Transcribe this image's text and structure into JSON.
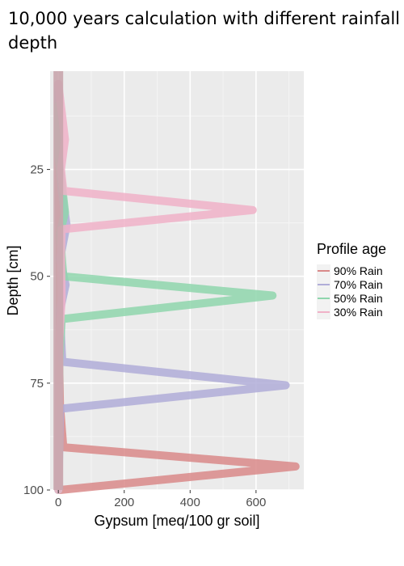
{
  "chart_data": {
    "type": "line",
    "title": "10,000 years calculation with different rainfall depth",
    "xlabel": "Gypsum [meq/100 gr soil]",
    "ylabel": "Depth [cm]",
    "xlim": [
      -25,
      745
    ],
    "ylim": [
      100,
      2
    ],
    "y_reversed": true,
    "x_ticks": [
      0,
      200,
      400,
      600
    ],
    "y_ticks": [
      25,
      50,
      75,
      100
    ],
    "grid": true,
    "background": "#ebebeb",
    "legend": {
      "title": "Profile age",
      "position": "right",
      "entries": [
        "90% Rain",
        "70% Rain",
        "50% Rain",
        "30% Rain"
      ]
    },
    "series": [
      {
        "name": "90% Rain",
        "color": "#d98a8a",
        "points": [
          [
            0,
            5
          ],
          [
            0,
            22
          ],
          [
            3,
            40
          ],
          [
            5,
            55
          ],
          [
            4,
            66
          ],
          [
            3,
            72
          ],
          [
            5,
            80
          ],
          [
            15,
            90
          ],
          [
            720,
            94.5
          ],
          [
            5,
            100
          ]
        ]
      },
      {
        "name": "70% Rain",
        "color": "#b0add8",
        "points": [
          [
            0,
            5
          ],
          [
            0,
            20
          ],
          [
            10,
            30
          ],
          [
            25,
            38
          ],
          [
            5,
            46
          ],
          [
            22,
            52
          ],
          [
            5,
            58
          ],
          [
            8,
            64
          ],
          [
            12,
            70
          ],
          [
            690,
            75.5
          ],
          [
            5,
            81
          ],
          [
            3,
            90
          ],
          [
            0,
            100
          ]
        ]
      },
      {
        "name": "50% Rain",
        "color": "#8fd6ad",
        "points": [
          [
            0,
            10
          ],
          [
            0,
            22
          ],
          [
            10,
            28
          ],
          [
            20,
            35
          ],
          [
            5,
            40
          ],
          [
            15,
            50
          ],
          [
            650,
            54.5
          ],
          [
            10,
            60
          ],
          [
            3,
            70
          ],
          [
            0,
            100
          ]
        ]
      },
      {
        "name": "30% Rain",
        "color": "#f0b2c8",
        "points": [
          [
            0,
            5
          ],
          [
            20,
            18
          ],
          [
            8,
            25
          ],
          [
            15,
            30
          ],
          [
            590,
            34.5
          ],
          [
            10,
            39
          ],
          [
            8,
            45
          ],
          [
            10,
            55
          ],
          [
            3,
            65
          ],
          [
            0,
            100
          ]
        ]
      }
    ]
  }
}
